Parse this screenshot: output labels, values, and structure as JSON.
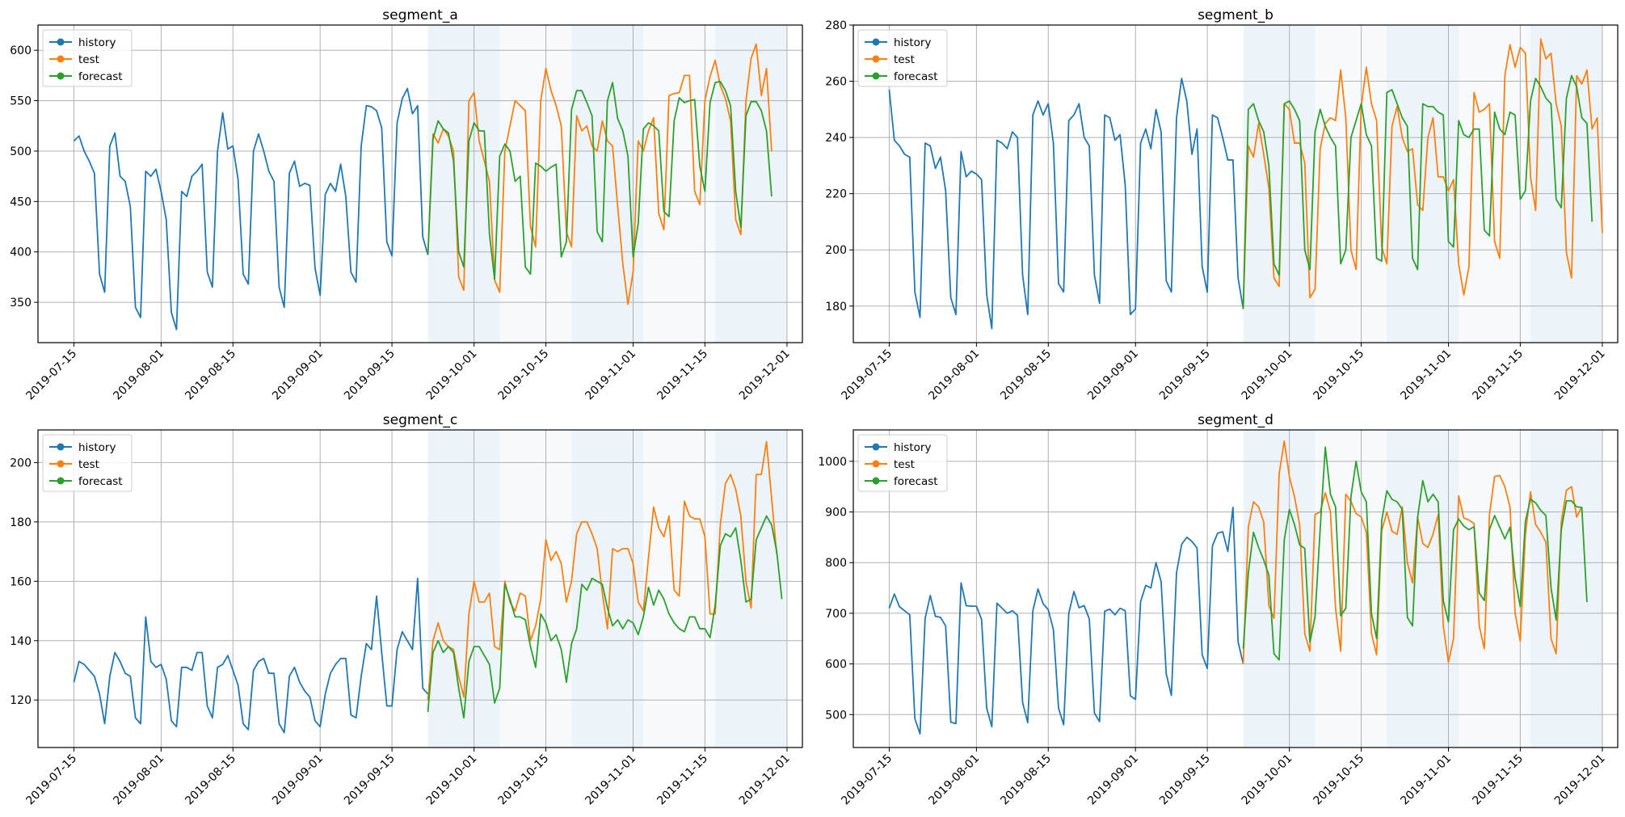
{
  "figure": {
    "legend": [
      "history",
      "test",
      "forecast"
    ],
    "legend_position": "upper-left",
    "colors": {
      "history": "#1f77b4",
      "test": "#ff7f0e",
      "forecast": "#2ca02c",
      "fold_band": "#d5e7f5"
    },
    "x_ticks": [
      "2019-07-15",
      "2019-08-01",
      "2019-08-15",
      "2019-09-01",
      "2019-09-15",
      "2019-10-01",
      "2019-10-15",
      "2019-11-01",
      "2019-11-15",
      "2019-12-01"
    ],
    "x_range": [
      "2019-07-08",
      "2019-12-04"
    ],
    "folds": [
      {
        "start": "2019-09-22",
        "end": "2019-10-06"
      },
      {
        "start": "2019-10-06",
        "end": "2019-10-20"
      },
      {
        "start": "2019-10-20",
        "end": "2019-11-03"
      },
      {
        "start": "2019-11-03",
        "end": "2019-11-17"
      },
      {
        "start": "2019-11-17",
        "end": "2019-12-01"
      }
    ],
    "grid": true
  },
  "chart_data": [
    {
      "type": "line",
      "title": "segment_a",
      "ylim": [
        310,
        625
      ],
      "y_ticks": [
        350,
        400,
        450,
        500,
        550,
        600
      ],
      "series": [
        {
          "name": "history",
          "start": "2019-07-15",
          "values": [
            510,
            515,
            500,
            490,
            478,
            378,
            360,
            505,
            518,
            475,
            470,
            445,
            345,
            335,
            480,
            475,
            482,
            460,
            432,
            340,
            323,
            460,
            455,
            475,
            480,
            487,
            380,
            365,
            500,
            538,
            502,
            505,
            472,
            378,
            368,
            500,
            517,
            500,
            480,
            470,
            365,
            345,
            478,
            490,
            465,
            468,
            466,
            384,
            357,
            457,
            468,
            460,
            487,
            455,
            380,
            370,
            505,
            545,
            544,
            540,
            523,
            410,
            396,
            528,
            552,
            562,
            537,
            545,
            415,
            397
          ]
        },
        {
          "name": "test",
          "start": "2019-09-22",
          "values": [
            397,
            517,
            508,
            522,
            515,
            500,
            375,
            362,
            550,
            558,
            510,
            490,
            470,
            372,
            360,
            500,
            525,
            550,
            545,
            540,
            425,
            405,
            550,
            582,
            560,
            545,
            525,
            420,
            405,
            535,
            520,
            525,
            505,
            500,
            530,
            510,
            505,
            445,
            388,
            348,
            380,
            510,
            500,
            520,
            533,
            438,
            422,
            555,
            557,
            558,
            575,
            575,
            460,
            447,
            550,
            574,
            590,
            565,
            552,
            530,
            432,
            417,
            550,
            592,
            606,
            555,
            582,
            500
          ]
        },
        {
          "name": "forecast",
          "start": "2019-09-22",
          "values": [
            397,
            512,
            530,
            522,
            518,
            490,
            400,
            385,
            510,
            528,
            520,
            520,
            418,
            373,
            495,
            507,
            500,
            470,
            475,
            385,
            378,
            488,
            485,
            480,
            484,
            487,
            395,
            410,
            541,
            560,
            560,
            548,
            535,
            420,
            410,
            550,
            568,
            532,
            520,
            495,
            395,
            428,
            522,
            528,
            525,
            520,
            440,
            435,
            530,
            553,
            548,
            550,
            551,
            485,
            460,
            548,
            568,
            569,
            560,
            545,
            460,
            424,
            535,
            549,
            549,
            540,
            520,
            455
          ]
        }
      ]
    },
    {
      "type": "line",
      "title": "segment_b",
      "ylim": [
        167,
        280
      ],
      "y_ticks": [
        180,
        200,
        220,
        240,
        260,
        280
      ],
      "series": [
        {
          "name": "history",
          "start": "2019-07-15",
          "values": [
            257,
            239,
            237,
            234,
            233,
            185,
            176,
            238,
            237,
            229,
            233,
            221,
            183,
            177,
            235,
            226,
            228,
            227,
            225,
            184,
            172,
            239,
            238,
            236,
            242,
            240,
            191,
            177,
            248,
            253,
            248,
            252,
            238,
            188,
            185,
            246,
            248,
            252,
            240,
            237,
            191,
            181,
            248,
            247,
            239,
            241,
            223,
            177,
            179,
            238,
            243,
            236,
            250,
            242,
            189,
            185,
            247,
            261,
            253,
            234,
            243,
            194,
            185,
            248,
            247,
            240,
            232,
            232,
            190,
            179
          ]
        },
        {
          "name": "test",
          "start": "2019-09-22",
          "values": [
            179,
            237,
            233,
            245,
            234,
            222,
            190,
            187,
            252,
            250,
            238,
            238,
            231,
            183,
            186,
            236,
            245,
            247,
            246,
            264,
            247,
            200,
            193,
            251,
            265,
            252,
            246,
            201,
            195,
            244,
            251,
            240,
            235,
            236,
            216,
            214,
            240,
            247,
            226,
            226,
            221,
            225,
            195,
            184,
            194,
            256,
            249,
            250,
            252,
            203,
            197,
            262,
            273,
            265,
            272,
            270,
            226,
            214,
            275,
            268,
            270,
            252,
            244,
            199,
            190,
            262,
            259,
            264,
            243,
            247,
            206
          ]
        },
        {
          "name": "forecast",
          "start": "2019-09-22",
          "values": [
            179,
            250,
            252,
            246,
            242,
            230,
            195,
            191,
            252,
            253,
            250,
            246,
            200,
            193,
            242,
            250,
            244,
            240,
            237,
            195,
            200,
            240,
            246,
            252,
            241,
            237,
            197,
            196,
            256,
            257,
            252,
            247,
            244,
            197,
            193,
            252,
            251,
            251,
            249,
            248,
            203,
            201,
            246,
            241,
            240,
            243,
            243,
            207,
            205,
            249,
            243,
            241,
            249,
            248,
            218,
            221,
            253,
            261,
            258,
            254,
            252,
            218,
            215,
            254,
            262,
            258,
            247,
            245,
            210
          ]
        }
      ]
    },
    {
      "type": "line",
      "title": "segment_c",
      "ylim": [
        104,
        211
      ],
      "y_ticks": [
        120,
        140,
        160,
        180,
        200
      ],
      "series": [
        {
          "name": "history",
          "start": "2019-07-15",
          "values": [
            126,
            133,
            132,
            130,
            128,
            122,
            112,
            128,
            136,
            133,
            129,
            128,
            114,
            112,
            148,
            133,
            131,
            132,
            127,
            113,
            111,
            131,
            131,
            130,
            136,
            136,
            118,
            114,
            131,
            132,
            135,
            130,
            125,
            112,
            110,
            130,
            133,
            134,
            129,
            129,
            112,
            109,
            128,
            131,
            126,
            123,
            121,
            113,
            111,
            122,
            129,
            132,
            134,
            134,
            115,
            114,
            128,
            139,
            137,
            155,
            136,
            118,
            118,
            137,
            143,
            140,
            137,
            161,
            124,
            122
          ]
        },
        {
          "name": "test",
          "start": "2019-09-22",
          "values": [
            120,
            140,
            146,
            140,
            138,
            137,
            128,
            121,
            149,
            160,
            153,
            153,
            156,
            138,
            137,
            160,
            153,
            150,
            156,
            155,
            140,
            145,
            154,
            174,
            167,
            170,
            166,
            153,
            160,
            176,
            180,
            180,
            176,
            171,
            156,
            144,
            171,
            170,
            171,
            171,
            166,
            153,
            150,
            168,
            185,
            178,
            175,
            182,
            157,
            155,
            187,
            182,
            181,
            181,
            175,
            149,
            149,
            179,
            193,
            196,
            191,
            182,
            160,
            151,
            196,
            196,
            207,
            188,
            169
          ]
        },
        {
          "name": "forecast",
          "start": "2019-09-22",
          "values": [
            116,
            136,
            140,
            136,
            138,
            136,
            124,
            114,
            133,
            138,
            138,
            135,
            132,
            119,
            124,
            159,
            154,
            148,
            148,
            147,
            138,
            131,
            149,
            146,
            140,
            142,
            137,
            126,
            139,
            144,
            159,
            157,
            161,
            160,
            159,
            151,
            145,
            147,
            144,
            147,
            146,
            142,
            148,
            158,
            152,
            157,
            154,
            149,
            146,
            144,
            143,
            148,
            148,
            144,
            144,
            141,
            152,
            172,
            176,
            175,
            178,
            167,
            153,
            154,
            174,
            178,
            182,
            179,
            170,
            154
          ]
        }
      ]
    },
    {
      "type": "line",
      "title": "segment_d",
      "ylim": [
        435,
        1062
      ],
      "y_ticks": [
        500,
        600,
        700,
        800,
        900,
        1000
      ],
      "series": [
        {
          "name": "history",
          "start": "2019-07-15",
          "values": [
            710,
            738,
            713,
            705,
            697,
            492,
            462,
            690,
            735,
            694,
            692,
            675,
            485,
            482,
            760,
            715,
            714,
            714,
            688,
            513,
            476,
            720,
            710,
            700,
            705,
            696,
            524,
            484,
            705,
            748,
            719,
            707,
            668,
            513,
            480,
            700,
            743,
            711,
            715,
            689,
            503,
            486,
            704,
            708,
            697,
            710,
            705,
            537,
            530,
            723,
            755,
            750,
            800,
            762,
            580,
            538,
            780,
            836,
            850,
            842,
            829,
            618,
            591,
            833,
            858,
            861,
            822,
            909,
            644,
            600
          ]
        },
        {
          "name": "test",
          "start": "2019-09-22",
          "values": [
            600,
            870,
            920,
            910,
            880,
            715,
            690,
            975,
            1040,
            970,
            930,
            875,
            660,
            625,
            895,
            900,
            938,
            900,
            710,
            625,
            935,
            921,
            897,
            890,
            860,
            660,
            618,
            863,
            900,
            862,
            856,
            910,
            800,
            760,
            890,
            838,
            830,
            856,
            895,
            675,
            603,
            650,
            932,
            888,
            884,
            877,
            675,
            630,
            895,
            970,
            972,
            950,
            910,
            700,
            645,
            855,
            940,
            875,
            860,
            840,
            650,
            620,
            880,
            943,
            950,
            890,
            910
          ]
        },
        {
          "name": "forecast",
          "start": "2019-09-22",
          "values": [
            630,
            780,
            860,
            830,
            805,
            775,
            620,
            608,
            845,
            905,
            875,
            835,
            828,
            643,
            693,
            866,
            1028,
            935,
            910,
            695,
            710,
            930,
            1000,
            940,
            920,
            700,
            650,
            883,
            942,
            925,
            920,
            905,
            692,
            675,
            890,
            962,
            920,
            935,
            920,
            725,
            683,
            865,
            886,
            872,
            865,
            871,
            740,
            725,
            865,
            893,
            870,
            847,
            870,
            770,
            713,
            882,
            925,
            918,
            903,
            893,
            750,
            687,
            865,
            922,
            922,
            910,
            909,
            722
          ]
        }
      ]
    }
  ]
}
